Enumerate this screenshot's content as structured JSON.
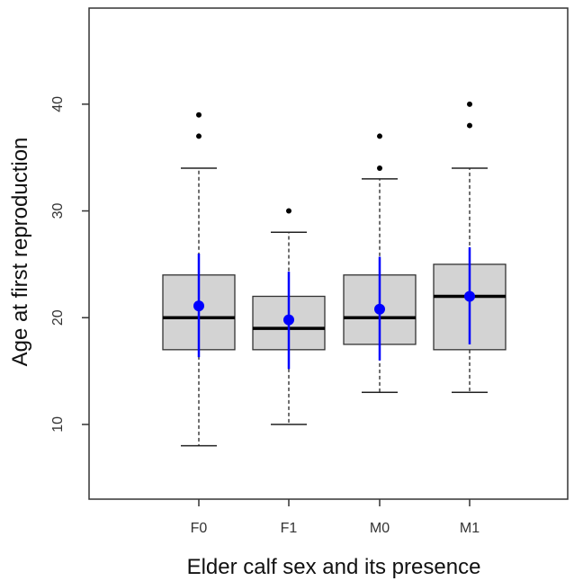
{
  "chart_data": {
    "type": "boxplot",
    "xlabel": "Elder calf sex and its presence",
    "ylabel": "Age at first reproduction",
    "ylim": [
      3,
      49
    ],
    "yticks": [
      10,
      20,
      30,
      40
    ],
    "grid": false,
    "categories": [
      "F0",
      "F1",
      "M0",
      "M1"
    ],
    "boxes": [
      {
        "category": "F0",
        "whisker_low": 8,
        "q1": 17,
        "median": 20,
        "q3": 24,
        "whisker_high": 34,
        "outliers": [
          37,
          39
        ]
      },
      {
        "category": "F1",
        "whisker_low": 10,
        "q1": 17,
        "median": 19,
        "q3": 22,
        "whisker_high": 28,
        "outliers": [
          30
        ]
      },
      {
        "category": "M0",
        "whisker_low": 13,
        "q1": 17.5,
        "median": 20,
        "q3": 24,
        "whisker_high": 33,
        "outliers": [
          34,
          37
        ]
      },
      {
        "category": "M1",
        "whisker_low": 13,
        "q1": 17,
        "median": 22,
        "q3": 25,
        "whisker_high": 34,
        "outliers": [
          38,
          40
        ]
      }
    ],
    "mean_overlay": [
      {
        "category": "F0",
        "mean": 21.1,
        "low": 16.3,
        "high": 26.0
      },
      {
        "category": "F1",
        "mean": 19.8,
        "low": 15.2,
        "high": 24.3
      },
      {
        "category": "M0",
        "mean": 20.8,
        "low": 16.0,
        "high": 25.7
      },
      {
        "category": "M1",
        "mean": 22.0,
        "low": 17.5,
        "high": 26.6
      }
    ],
    "colors": {
      "box_fill": "#d3d3d3",
      "box_stroke": "#333333",
      "median": "#000000",
      "whisker": "#222222",
      "outlier": "#000000",
      "mean": "#0000ff",
      "axis": "#333333"
    }
  }
}
